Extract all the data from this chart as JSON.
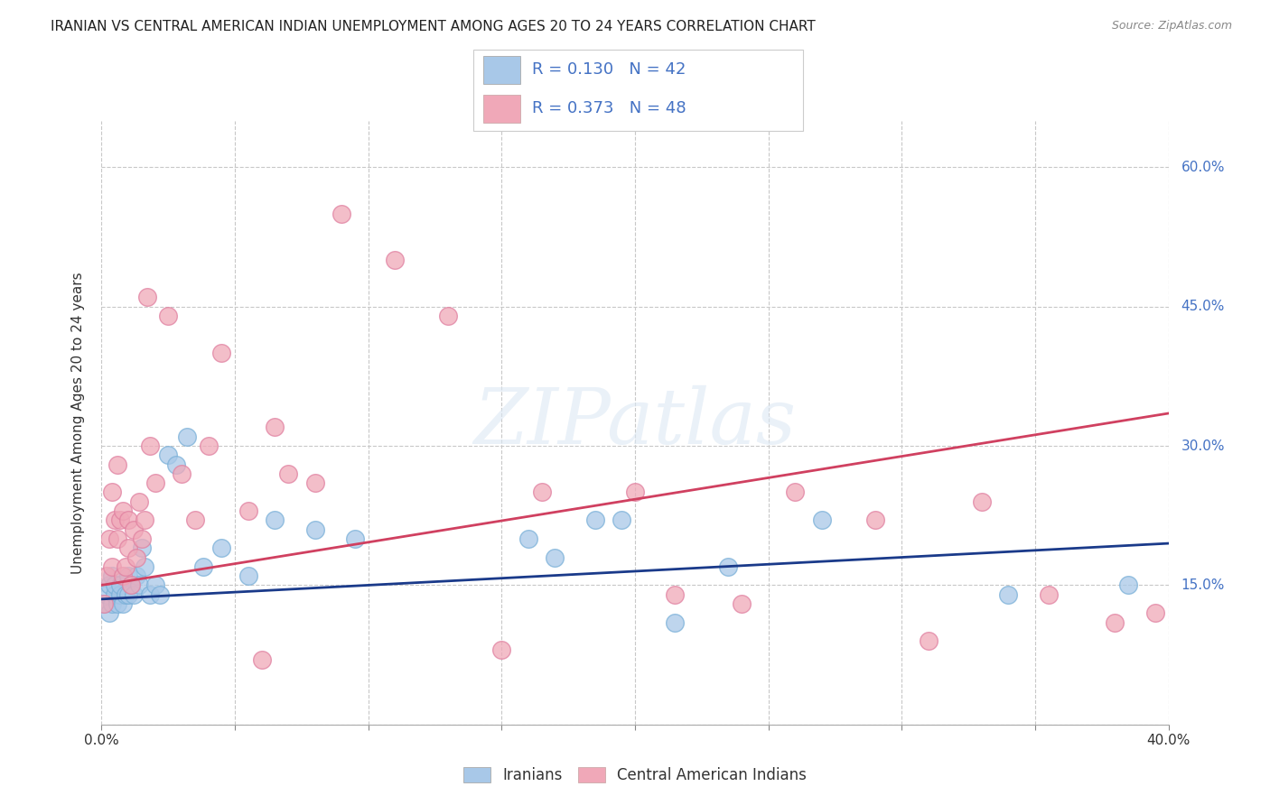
{
  "title": "IRANIAN VS CENTRAL AMERICAN INDIAN UNEMPLOYMENT AMONG AGES 20 TO 24 YEARS CORRELATION CHART",
  "source": "Source: ZipAtlas.com",
  "ylabel": "Unemployment Among Ages 20 to 24 years",
  "xlim": [
    0.0,
    0.4
  ],
  "ylim": [
    0.0,
    0.65
  ],
  "x_ticks": [
    0.0,
    0.05,
    0.1,
    0.15,
    0.2,
    0.25,
    0.3,
    0.35,
    0.4
  ],
  "x_tick_labels": [
    "0.0%",
    "",
    "",
    "",
    "",
    "",
    "",
    "",
    "40.0%"
  ],
  "y_ticks": [
    0.0,
    0.15,
    0.3,
    0.45,
    0.6
  ],
  "y_tick_labels": [
    "",
    "15.0%",
    "30.0%",
    "45.0%",
    "60.0%"
  ],
  "background_color": "#ffffff",
  "grid_color": "#c8c8c8",
  "watermark": "ZIPatlas",
  "blue_color": "#a8c8e8",
  "pink_color": "#f0a8b8",
  "blue_edge_color": "#7ab0d8",
  "pink_edge_color": "#e080a0",
  "blue_line_color": "#1a3a8a",
  "pink_line_color": "#d04060",
  "R_blue": 0.13,
  "N_blue": 42,
  "R_pink": 0.373,
  "N_pink": 48,
  "legend_label_blue": "Iranians",
  "legend_label_pink": "Central American Indians",
  "blue_points_x": [
    0.001,
    0.002,
    0.003,
    0.003,
    0.004,
    0.004,
    0.005,
    0.005,
    0.006,
    0.007,
    0.007,
    0.008,
    0.009,
    0.01,
    0.01,
    0.011,
    0.012,
    0.013,
    0.014,
    0.015,
    0.016,
    0.018,
    0.02,
    0.022,
    0.025,
    0.028,
    0.032,
    0.038,
    0.045,
    0.055,
    0.065,
    0.08,
    0.095,
    0.16,
    0.17,
    0.185,
    0.195,
    0.215,
    0.235,
    0.27,
    0.34,
    0.385
  ],
  "blue_points_y": [
    0.13,
    0.14,
    0.12,
    0.15,
    0.13,
    0.16,
    0.14,
    0.15,
    0.13,
    0.14,
    0.15,
    0.13,
    0.14,
    0.16,
    0.14,
    0.15,
    0.14,
    0.16,
    0.15,
    0.19,
    0.17,
    0.14,
    0.15,
    0.14,
    0.29,
    0.28,
    0.31,
    0.17,
    0.19,
    0.16,
    0.22,
    0.21,
    0.2,
    0.2,
    0.18,
    0.22,
    0.22,
    0.11,
    0.17,
    0.22,
    0.14,
    0.15
  ],
  "pink_points_x": [
    0.001,
    0.002,
    0.003,
    0.004,
    0.004,
    0.005,
    0.006,
    0.006,
    0.007,
    0.008,
    0.008,
    0.009,
    0.01,
    0.01,
    0.011,
    0.012,
    0.013,
    0.014,
    0.015,
    0.016,
    0.017,
    0.018,
    0.02,
    0.025,
    0.03,
    0.035,
    0.04,
    0.045,
    0.055,
    0.06,
    0.065,
    0.07,
    0.08,
    0.09,
    0.11,
    0.13,
    0.15,
    0.165,
    0.2,
    0.215,
    0.24,
    0.26,
    0.29,
    0.31,
    0.33,
    0.355,
    0.38,
    0.395
  ],
  "pink_points_y": [
    0.13,
    0.16,
    0.2,
    0.17,
    0.25,
    0.22,
    0.2,
    0.28,
    0.22,
    0.16,
    0.23,
    0.17,
    0.19,
    0.22,
    0.15,
    0.21,
    0.18,
    0.24,
    0.2,
    0.22,
    0.46,
    0.3,
    0.26,
    0.44,
    0.27,
    0.22,
    0.3,
    0.4,
    0.23,
    0.07,
    0.32,
    0.27,
    0.26,
    0.55,
    0.5,
    0.44,
    0.08,
    0.25,
    0.25,
    0.14,
    0.13,
    0.25,
    0.22,
    0.09,
    0.24,
    0.14,
    0.11,
    0.12
  ],
  "blue_line_x": [
    0.0,
    0.4
  ],
  "blue_line_y": [
    0.135,
    0.195
  ],
  "pink_line_x": [
    0.0,
    0.4
  ],
  "pink_line_y": [
    0.15,
    0.335
  ]
}
